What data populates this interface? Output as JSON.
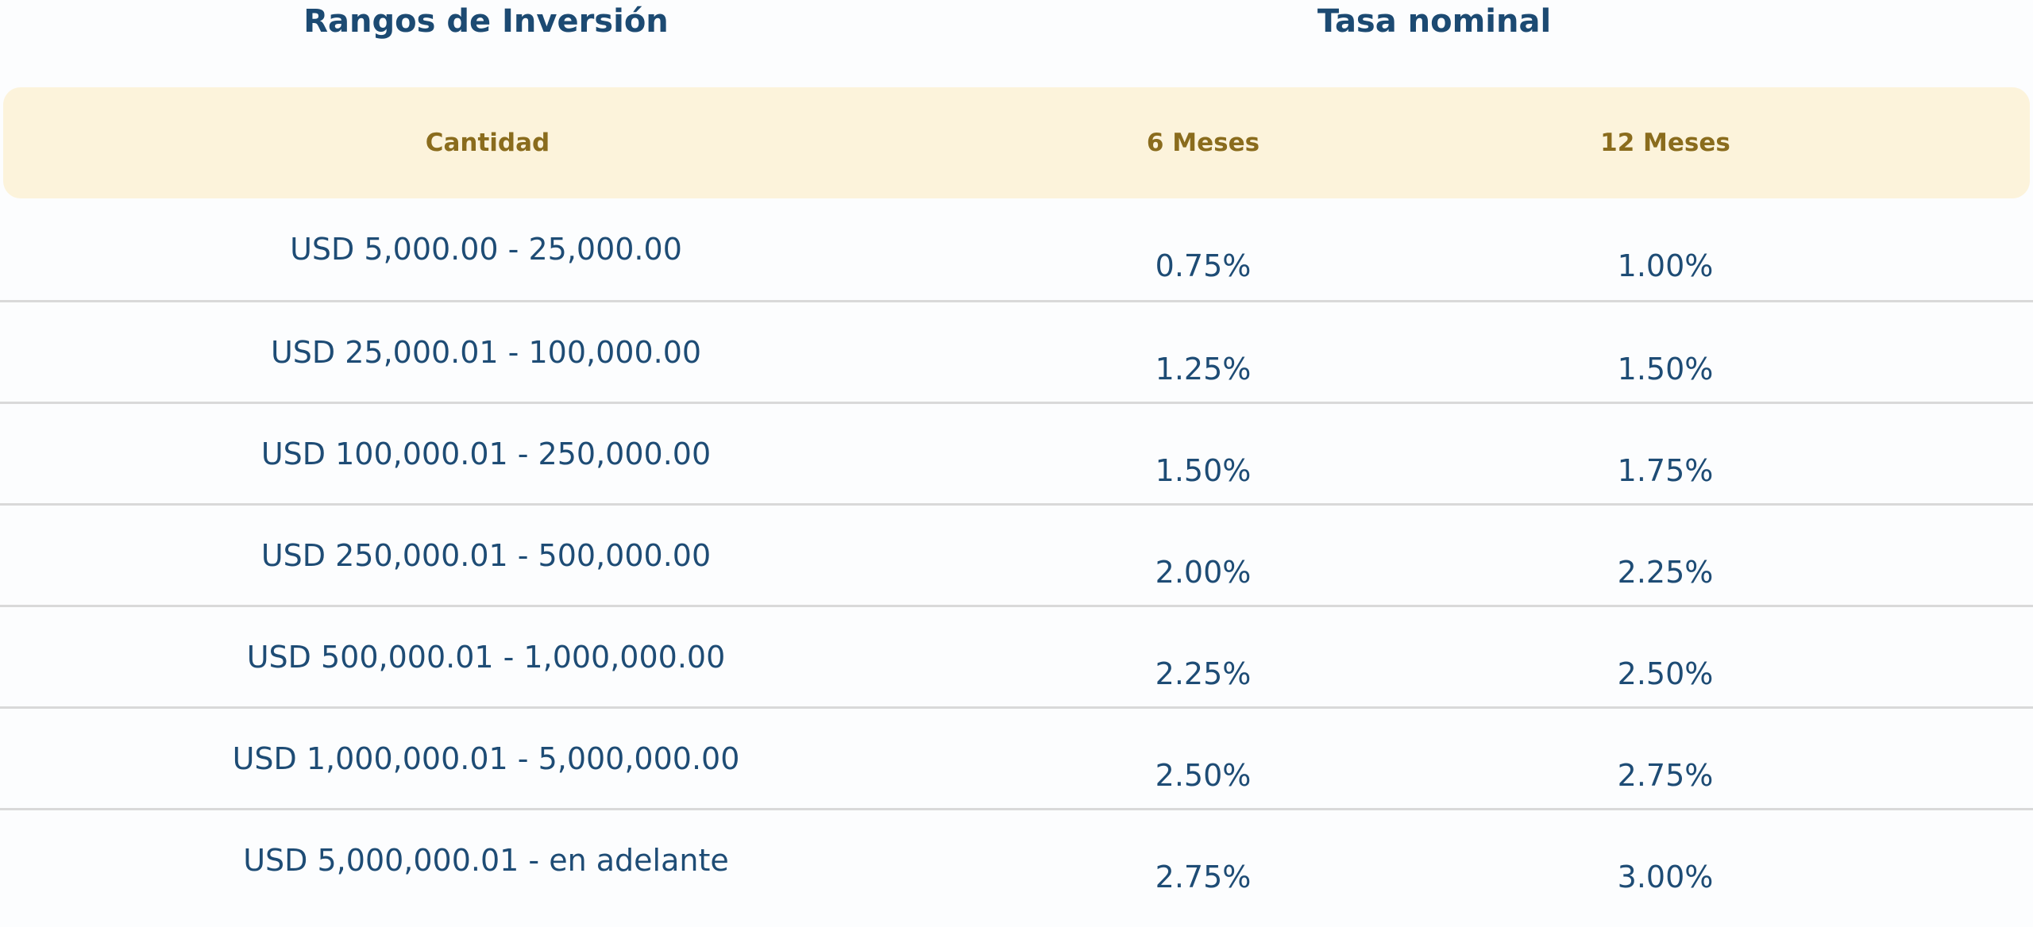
{
  "colors": {
    "navy_text": "#1c4a72",
    "gold_text": "#8a6c1d",
    "band_background": "#fcf3db",
    "divider": "#d9d9d9",
    "page_background": "#fcfdfe"
  },
  "header": {
    "ranges_title": "Rangos de Inversión",
    "rate_title": "Tasa nominal"
  },
  "subheader": {
    "amount": "Cantidad",
    "six_months": "6 Meses",
    "twelve_months": "12 Meses"
  },
  "table": {
    "rows": [
      {
        "range": "USD 5,000.00 - 25,000.00",
        "rate_6m": "0.75%",
        "rate_12m": "1.00%"
      },
      {
        "range": "USD 25,000.01 - 100,000.00",
        "rate_6m": "1.25%",
        "rate_12m": "1.50%"
      },
      {
        "range": "USD 100,000.01 - 250,000.00",
        "rate_6m": "1.50%",
        "rate_12m": "1.75%"
      },
      {
        "range": "USD 250,000.01 - 500,000.00",
        "rate_6m": "2.00%",
        "rate_12m": "2.25%"
      },
      {
        "range": "USD 500,000.01 - 1,000,000.00",
        "rate_6m": "2.25%",
        "rate_12m": "2.50%"
      },
      {
        "range": "USD 1,000,000.01 - 5,000,000.00",
        "rate_6m": "2.50%",
        "rate_12m": "2.75%"
      },
      {
        "range": "USD 5,000,000.01 - en adelante",
        "rate_6m": "2.75%",
        "rate_12m": "3.00%"
      }
    ]
  },
  "chart_data": {
    "type": "table",
    "title": "Rangos de Inversión / Tasa nominal",
    "columns": [
      "Cantidad",
      "6 Meses",
      "12 Meses"
    ],
    "rows": [
      [
        "USD 5,000.00 - 25,000.00",
        "0.75%",
        "1.00%"
      ],
      [
        "USD 25,000.01 - 100,000.00",
        "1.25%",
        "1.50%"
      ],
      [
        "USD 100,000.01 - 250,000.00",
        "1.50%",
        "1.75%"
      ],
      [
        "USD 250,000.01 - 500,000.00",
        "2.00%",
        "2.25%"
      ],
      [
        "USD 500,000.01 - 1,000,000.00",
        "2.25%",
        "2.50%"
      ],
      [
        "USD 1,000,000.01 - 5,000,000.00",
        "2.50%",
        "2.75%"
      ],
      [
        "USD 5,000,000.01 - en adelante",
        "2.75%",
        "3.00%"
      ]
    ]
  }
}
